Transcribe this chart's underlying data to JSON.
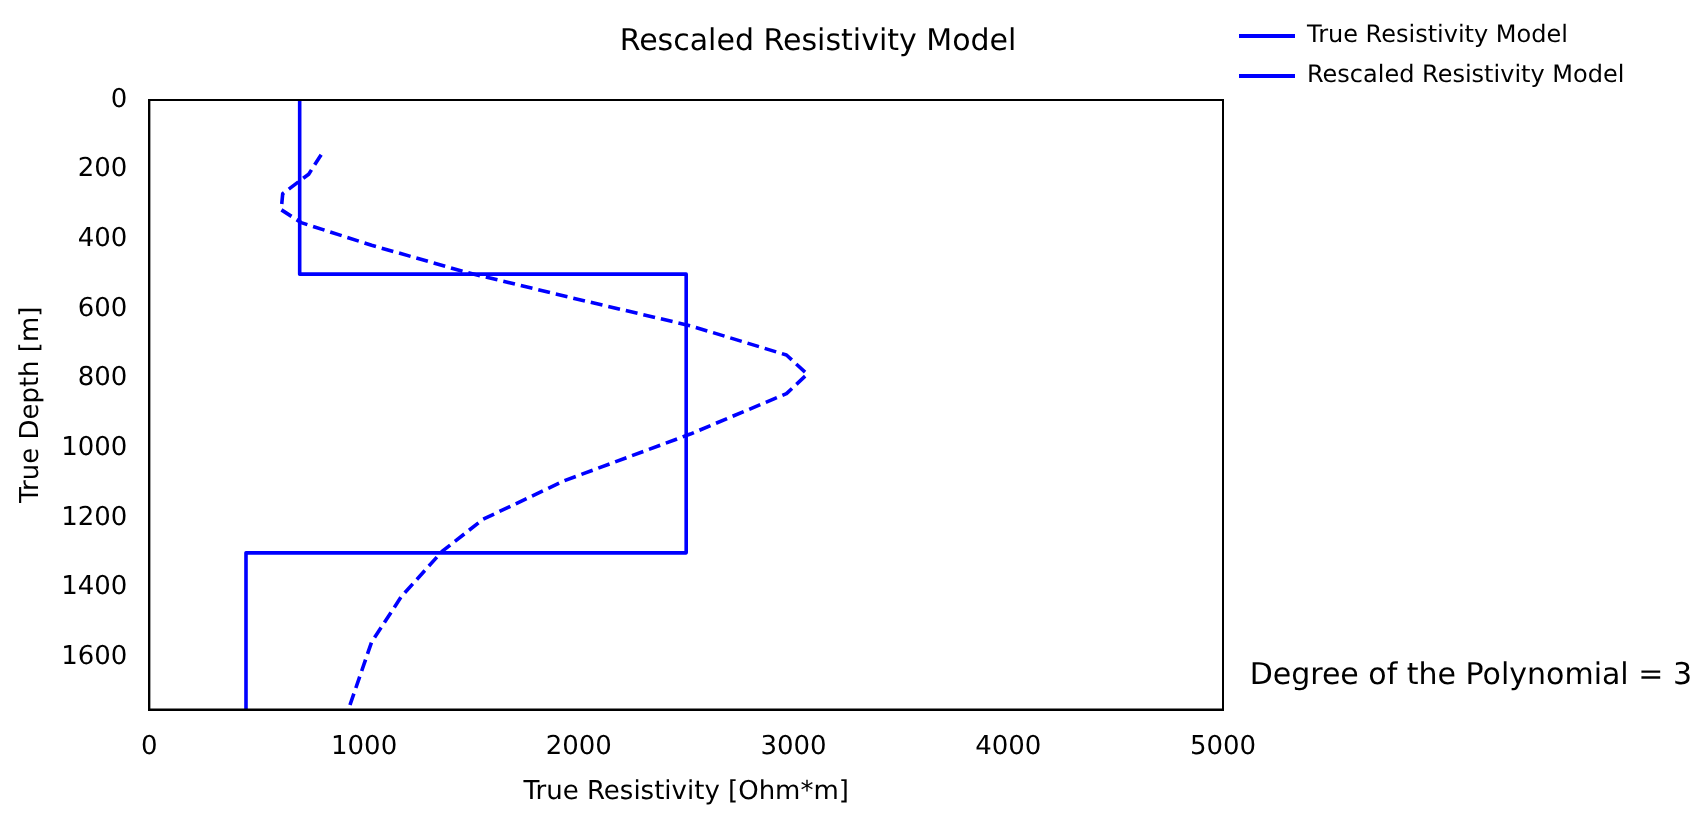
{
  "chart_data": {
    "type": "line",
    "title": "Rescaled Resistivity Model",
    "xlabel": "True Resistivity [Ohm*m]",
    "ylabel": "True Depth [m]",
    "xlim": [
      0,
      5000
    ],
    "xticks": [
      0,
      1000,
      2000,
      3000,
      4000,
      5000
    ],
    "ylim": [
      1750,
      0
    ],
    "yticks": [
      0,
      200,
      400,
      600,
      800,
      1000,
      1200,
      1400,
      1600
    ],
    "grid": false,
    "legend": "top right",
    "marker": "none",
    "annotations": [
      "Degree of the Polynomial = 3"
    ],
    "series": [
      {
        "name": "True Resistivity Model",
        "color": "#0000ff",
        "line_style": "solid",
        "x": [
          700,
          700,
          2500,
          2500,
          450,
          450
        ],
        "values": [
          0,
          500,
          500,
          1300,
          1300,
          1750
        ]
      },
      {
        "name": "Rescaled Resistivity Model",
        "color": "#0000ff",
        "line_style": "dashed",
        "x": [
          800,
          742,
          621,
          614,
          707,
          1035,
          1484,
          2070,
          2519,
          2967,
          3064,
          2967,
          2519,
          1932,
          1553,
          1363,
          1173,
          1035,
          932
        ],
        "values": [
          157,
          213,
          269,
          315,
          352,
          417,
          496,
          583,
          648,
          732,
          787,
          843,
          959,
          1093,
          1204,
          1296,
          1426,
          1556,
          1741
        ]
      }
    ]
  }
}
